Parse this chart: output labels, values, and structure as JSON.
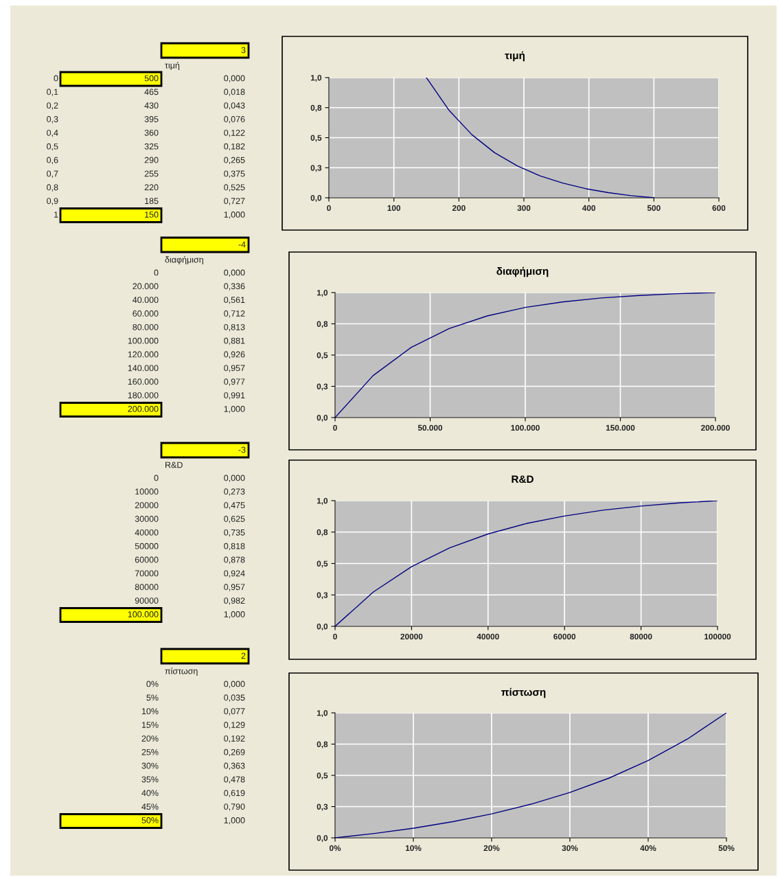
{
  "chart_data": [
    {
      "type": "line",
      "title": "τιμή",
      "color": "#000080",
      "grid": true,
      "x": [
        500,
        465,
        430,
        395,
        360,
        325,
        290,
        255,
        220,
        185,
        150
      ],
      "values": [
        0.0,
        0.018,
        0.043,
        0.076,
        0.122,
        0.182,
        0.265,
        0.375,
        0.525,
        0.727,
        1.0
      ],
      "xlim": [
        0,
        600
      ],
      "xticks": [
        0,
        100,
        200,
        300,
        400,
        500,
        600
      ],
      "ylim": [
        0,
        1
      ],
      "yticks": [
        {
          "value": 0,
          "label": "0,0"
        },
        {
          "value": 0.25,
          "label": "0,3"
        },
        {
          "value": 0.5,
          "label": "0,5"
        },
        {
          "value": 0.75,
          "label": "0,8"
        },
        {
          "value": 1,
          "label": "1,0"
        }
      ],
      "annotations": [
        "3",
        "τιμή",
        "0",
        "500",
        "0,000",
        "0,1",
        "465",
        "0,018",
        "0,2",
        "430",
        "0,043",
        "0,3",
        "395",
        "0,076",
        "0,4",
        "360",
        "0,122",
        "0,5",
        "325",
        "0,182",
        "0,6",
        "290",
        "0,265",
        "0,7",
        "255",
        "0,375",
        "0,8",
        "220",
        "0,525",
        "0,9",
        "185",
        "0,727",
        "1",
        "150",
        "1,000"
      ]
    },
    {
      "type": "line",
      "title": "διαφήμιση",
      "color": "#000080",
      "grid": true,
      "x": [
        0,
        20000,
        40000,
        60000,
        80000,
        100000,
        120000,
        140000,
        160000,
        180000,
        200000
      ],
      "values": [
        0.0,
        0.336,
        0.561,
        0.712,
        0.813,
        0.881,
        0.926,
        0.957,
        0.977,
        0.991,
        1.0
      ],
      "xlim": [
        0,
        200000
      ],
      "xticks": [
        0,
        {
          "value": 50000,
          "label": "50.000"
        },
        {
          "value": 100000,
          "label": "100.000"
        },
        {
          "value": 150000,
          "label": "150.000"
        },
        {
          "value": 200000,
          "label": "200.000"
        }
      ],
      "ylim": [
        0,
        1
      ],
      "yticks": [
        {
          "value": 0,
          "label": "0,0"
        },
        {
          "value": 0.25,
          "label": "0,3"
        },
        {
          "value": 0.5,
          "label": "0,5"
        },
        {
          "value": 0.75,
          "label": "0,8"
        },
        {
          "value": 1,
          "label": "1,0"
        }
      ],
      "annotations": [
        "-4",
        "διαφήμιση",
        "0",
        "0,000",
        "20.000",
        "0,336",
        "40.000",
        "0,561",
        "60.000",
        "0,712",
        "80.000",
        "0,813",
        "100.000",
        "0,881",
        "120.000",
        "0,926",
        "140.000",
        "0,957",
        "160.000",
        "0,977",
        "180.000",
        "0,991",
        "200.000",
        "1,000"
      ]
    },
    {
      "type": "line",
      "title": "R&D",
      "color": "#000080",
      "grid": true,
      "x": [
        0,
        10000,
        20000,
        30000,
        40000,
        50000,
        60000,
        70000,
        80000,
        90000,
        100000
      ],
      "values": [
        0.0,
        0.273,
        0.475,
        0.625,
        0.735,
        0.818,
        0.878,
        0.924,
        0.957,
        0.982,
        1.0
      ],
      "xlim": [
        0,
        100000
      ],
      "xticks": [
        0,
        20000,
        40000,
        60000,
        80000,
        100000
      ],
      "ylim": [
        0,
        1
      ],
      "yticks": [
        {
          "value": 0,
          "label": "0,0"
        },
        {
          "value": 0.25,
          "label": "0,3"
        },
        {
          "value": 0.5,
          "label": "0,5"
        },
        {
          "value": 0.75,
          "label": "0,8"
        },
        {
          "value": 1,
          "label": "1,0"
        }
      ],
      "annotations": [
        "-3",
        "R&D",
        "0",
        "0,000",
        "10000",
        "0,273",
        "20000",
        "0,475",
        "30000",
        "0,625",
        "40000",
        "0,735",
        "50000",
        "0,818",
        "60000",
        "0,878",
        "70000",
        "0,924",
        "80000",
        "0,957",
        "90000",
        "0,982",
        "100.000",
        "1,000"
      ]
    },
    {
      "type": "line",
      "title": "πίστωση",
      "color": "#000080",
      "grid": true,
      "x": [
        0,
        5,
        10,
        15,
        20,
        25,
        30,
        35,
        40,
        45,
        50
      ],
      "values": [
        0.0,
        0.035,
        0.077,
        0.129,
        0.192,
        0.269,
        0.363,
        0.478,
        0.619,
        0.79,
        1.0
      ],
      "xlim": [
        0,
        50
      ],
      "xticks": [
        {
          "value": 0,
          "label": "0%"
        },
        {
          "value": 10,
          "label": "10%"
        },
        {
          "value": 20,
          "label": "20%"
        },
        {
          "value": 30,
          "label": "30%"
        },
        {
          "value": 40,
          "label": "40%"
        },
        {
          "value": 50,
          "label": "50%"
        }
      ],
      "ylim": [
        0,
        1
      ],
      "yticks": [
        {
          "value": 0,
          "label": "0,0"
        },
        {
          "value": 0.25,
          "label": "0,3"
        },
        {
          "value": 0.5,
          "label": "0,5"
        },
        {
          "value": 0.75,
          "label": "0,8"
        },
        {
          "value": 1,
          "label": "1,0"
        }
      ],
      "annotations": [
        "2",
        "πίστωση",
        "0%",
        "0,000",
        "5%",
        "0,035",
        "10%",
        "0,077",
        "15%",
        "0,129",
        "20%",
        "0,192",
        "25%",
        "0,269",
        "30%",
        "0,363",
        "35%",
        "0,478",
        "40%",
        "0,619",
        "45%",
        "0,790",
        "50%",
        "1,000"
      ]
    }
  ]
}
